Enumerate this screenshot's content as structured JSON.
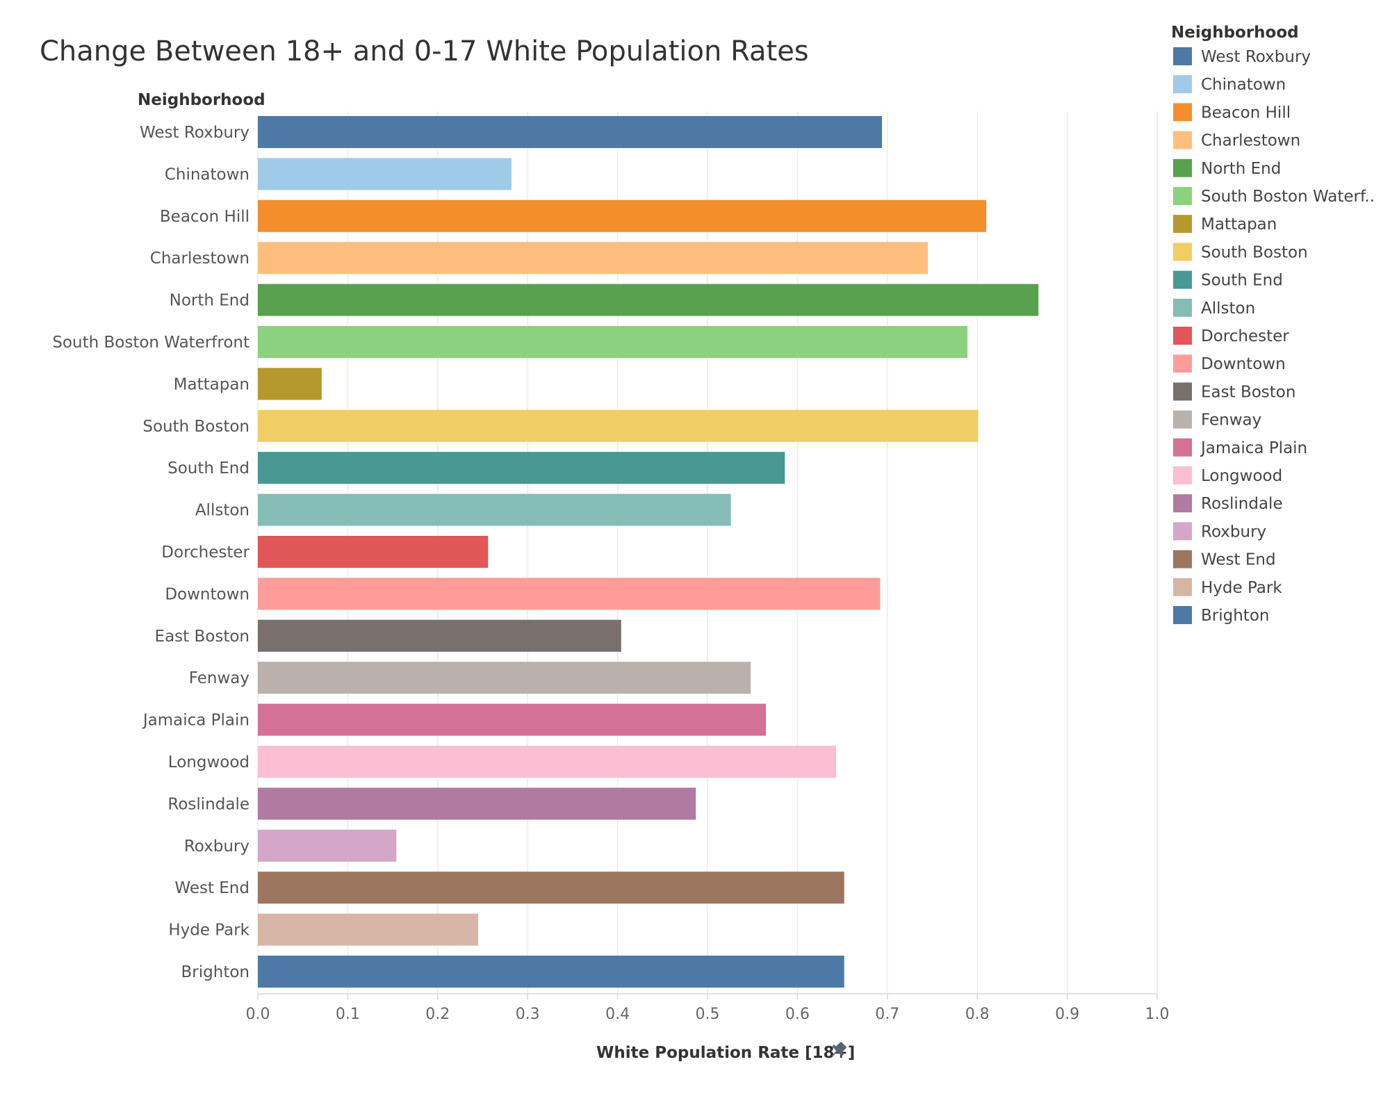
{
  "chart_data": {
    "type": "bar",
    "orientation": "horizontal",
    "title": "Change Between 18+ and 0-17 White Population Rates",
    "row_header": "Neighborhood",
    "xlabel": "White Population Rate [18+]",
    "xlim": [
      0,
      1
    ],
    "x_ticks": [
      "0.0",
      "0.1",
      "0.2",
      "0.3",
      "0.4",
      "0.5",
      "0.6",
      "0.7",
      "0.8",
      "0.9",
      "1.0"
    ],
    "grid": true,
    "legend_title": "Neighborhood",
    "legend_position": "right",
    "categories": [
      "West Roxbury",
      "Chinatown",
      "Beacon Hill",
      "Charlestown",
      "North End",
      "South Boston Waterfront",
      "Mattapan",
      "South Boston",
      "South End",
      "Allston",
      "Dorchester",
      "Downtown",
      "East Boston",
      "Fenway",
      "Jamaica Plain",
      "Longwood",
      "Roslindale",
      "Roxbury",
      "West End",
      "Hyde Park",
      "Brighton"
    ],
    "legend_labels": [
      "West Roxbury",
      "Chinatown",
      "Beacon Hill",
      "Charlestown",
      "North End",
      "South Boston Waterf..",
      "Mattapan",
      "South Boston",
      "South End",
      "Allston",
      "Dorchester",
      "Downtown",
      "East Boston",
      "Fenway",
      "Jamaica Plain",
      "Longwood",
      "Roslindale",
      "Roxbury",
      "West End",
      "Hyde Park",
      "Brighton"
    ],
    "values": [
      0.694,
      0.282,
      0.81,
      0.745,
      0.868,
      0.789,
      0.071,
      0.801,
      0.586,
      0.526,
      0.256,
      0.692,
      0.404,
      0.548,
      0.565,
      0.643,
      0.487,
      0.154,
      0.652,
      0.245,
      0.652
    ],
    "colors": [
      "#4e79a7",
      "#a0cbe8",
      "#f28e2b",
      "#ffbe7d",
      "#59a14f",
      "#8cd17d",
      "#b6992d",
      "#f1ce63",
      "#499894",
      "#86bcb6",
      "#e15759",
      "#ff9d9a",
      "#79706e",
      "#bab0ac",
      "#d37295",
      "#fabfd2",
      "#b07aa1",
      "#d4a6c8",
      "#9d7660",
      "#d7b5a6",
      "#4e79a7"
    ],
    "axis_icon": "pin-icon"
  }
}
